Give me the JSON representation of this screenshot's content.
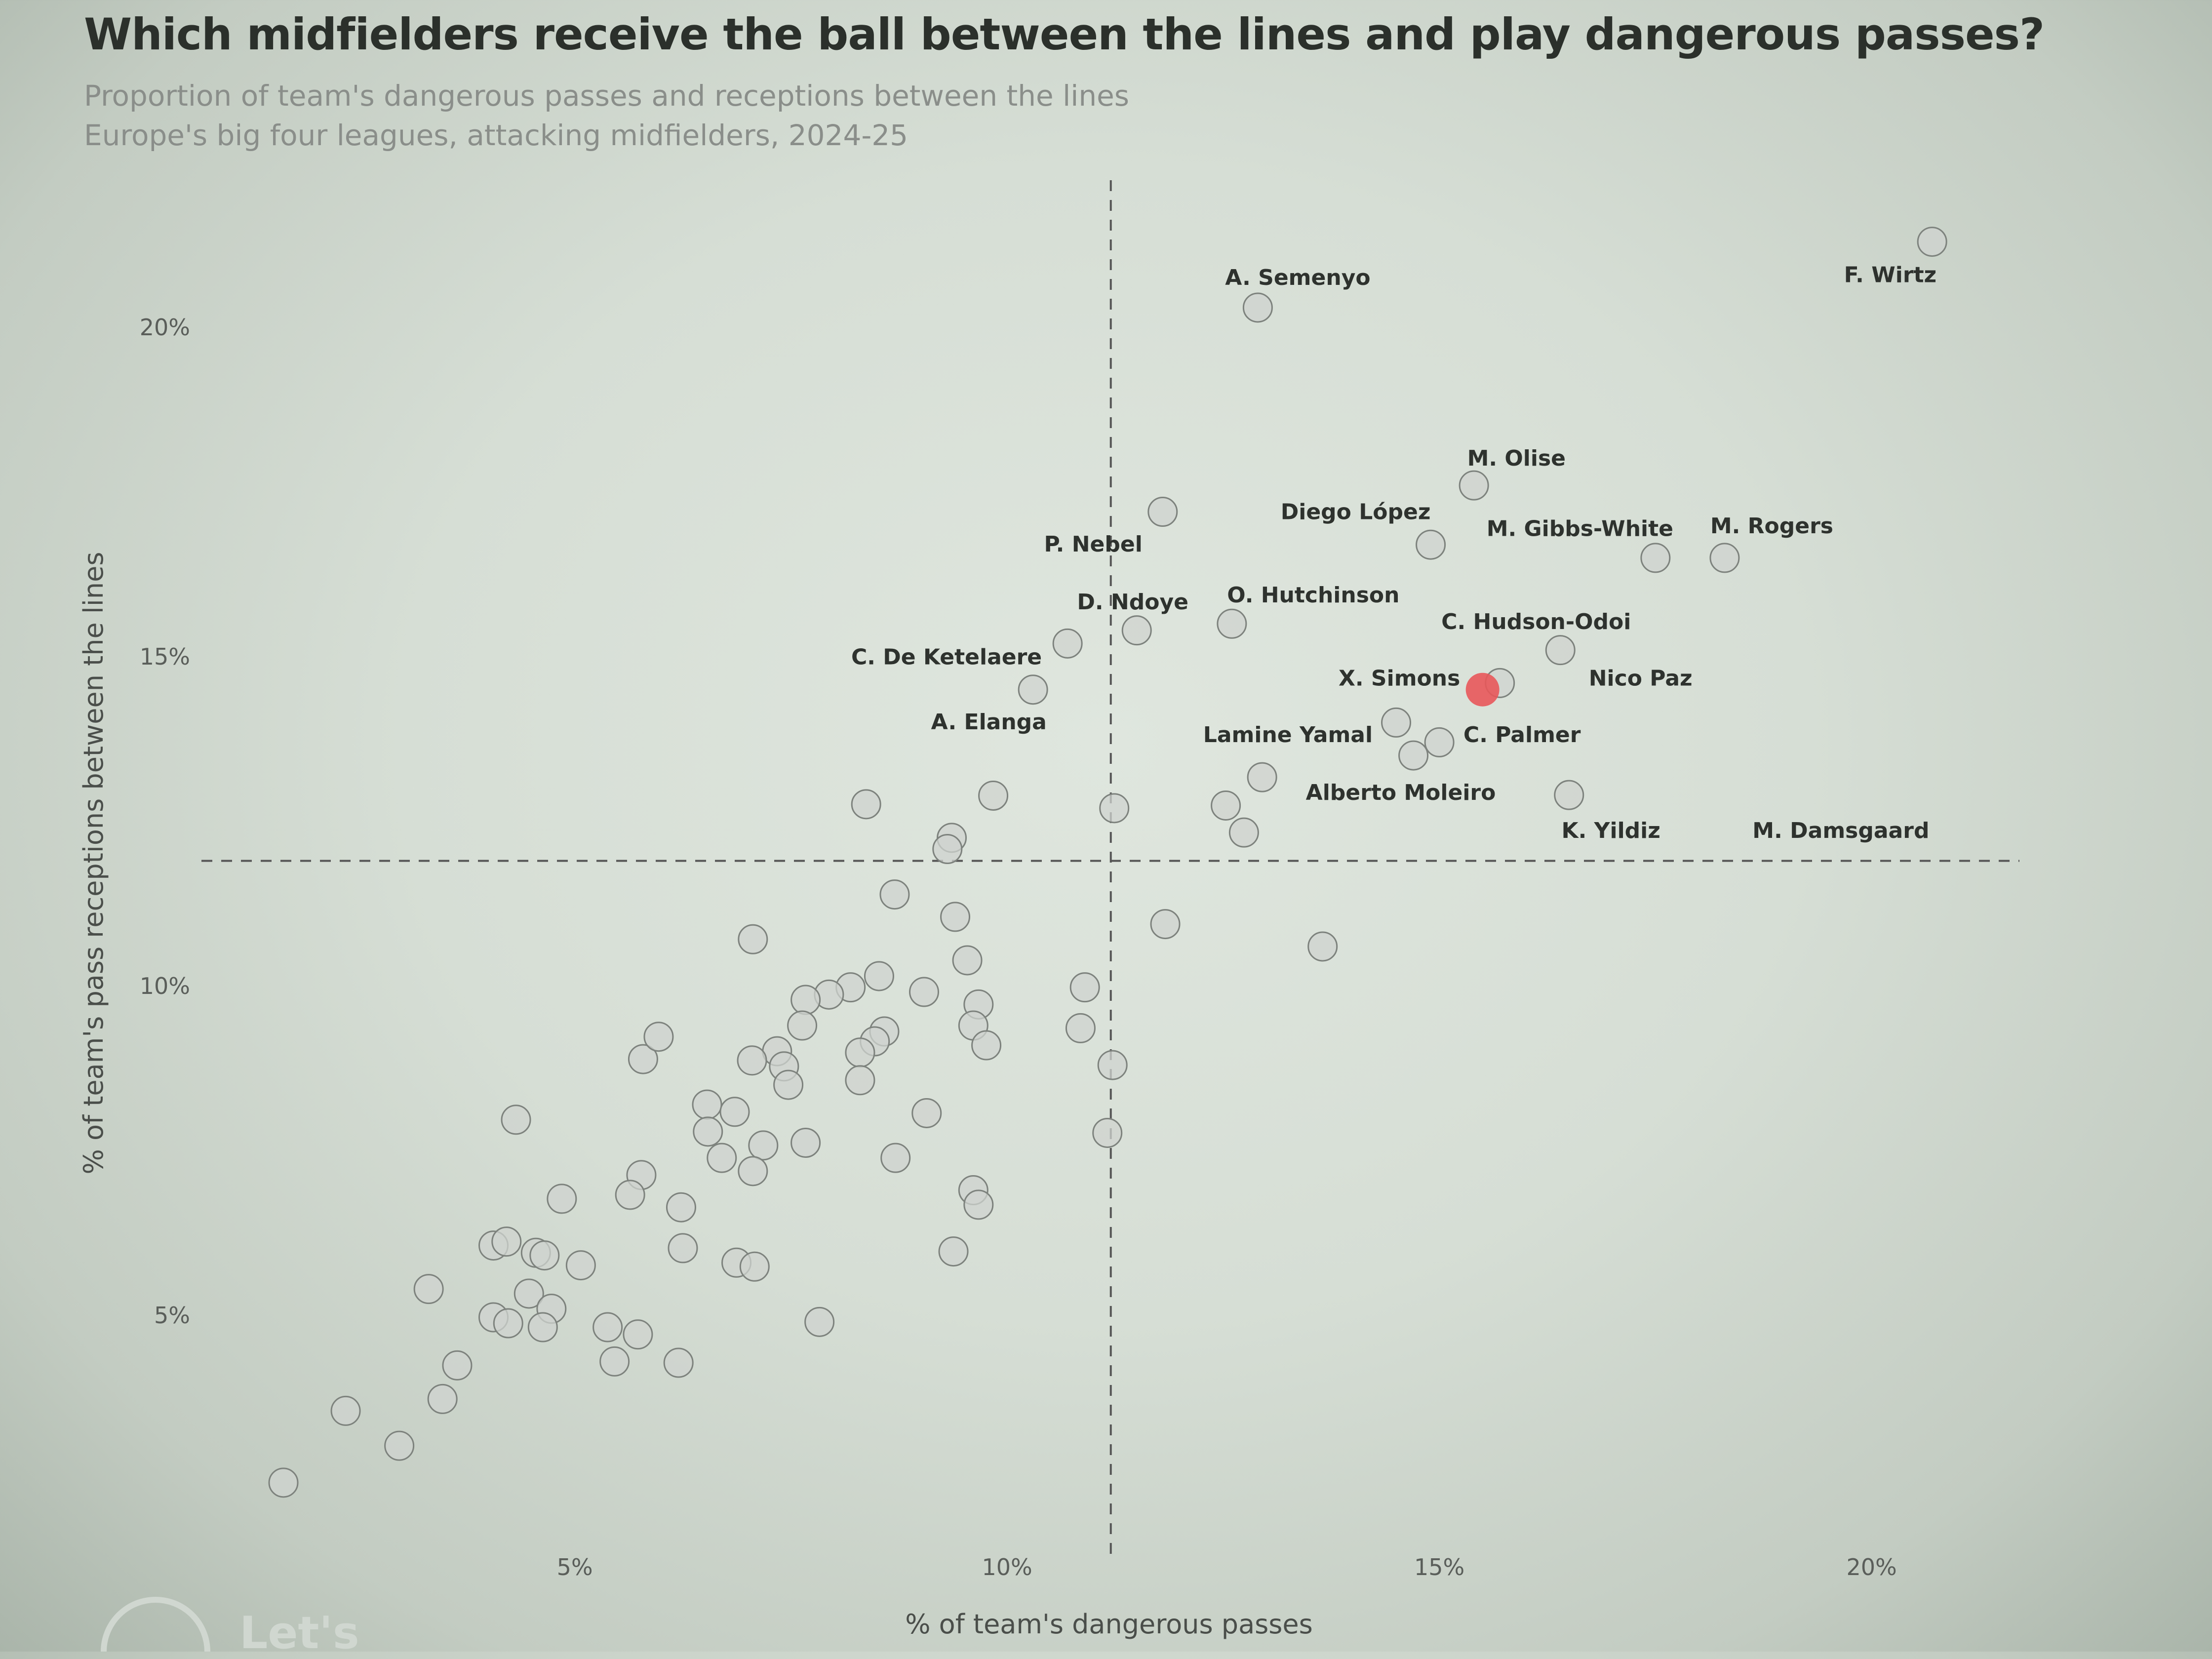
{
  "title": "Which midfielders receive the ball between the lines and play dangerous passes?",
  "subtitle_lines": [
    "Proportion of team's dangerous passes and receptions between the lines",
    "Europe's big four leagues, attacking midfielders, 2024-25"
  ],
  "logo": {
    "text": "Let's"
  },
  "colors": {
    "point_fill": "#cfd3cf",
    "point_stroke": "#7d827d",
    "highlight": "#e8585a",
    "background": "#d9e0d8",
    "reference_line": "#555555"
  },
  "chart_data": {
    "type": "scatter",
    "xlabel": "% of team's dangerous passes",
    "ylabel": "% of team's pass receptions between the lines",
    "xlim": [
      0,
      22.5
    ],
    "ylim": [
      0,
      22.5
    ],
    "x_ticks": [
      {
        "value": 5,
        "label": "5%"
      },
      {
        "value": 10,
        "label": "10%"
      },
      {
        "value": 15,
        "label": "15%"
      },
      {
        "value": 20,
        "label": "20%"
      }
    ],
    "y_ticks": [
      {
        "value": 5,
        "label": "5%"
      },
      {
        "value": 10,
        "label": "10%"
      },
      {
        "value": 15,
        "label": "15%"
      },
      {
        "value": 20,
        "label": "20%"
      }
    ],
    "grid": false,
    "reference_lines": {
      "x": 11.2,
      "y": 11.9,
      "style": "dashed"
    },
    "labeled_points": [
      {
        "name": "F. Wirtz",
        "x": 20.7,
        "y": 21.3
      },
      {
        "name": "A. Semenyo",
        "x": 12.9,
        "y": 20.3
      },
      {
        "name": "M. Olise",
        "x": 15.4,
        "y": 17.6
      },
      {
        "name": "Diego López",
        "x": 14.9,
        "y": 16.7
      },
      {
        "name": "M. Gibbs-White",
        "x": 17.5,
        "y": 16.5
      },
      {
        "name": "M. Rogers",
        "x": 18.3,
        "y": 16.5
      },
      {
        "name": "P. Nebel",
        "x": 11.8,
        "y": 17.2
      },
      {
        "name": "D. Ndoye",
        "x": 11.5,
        "y": 15.4
      },
      {
        "name": "O. Hutchinson",
        "x": 12.6,
        "y": 15.5
      },
      {
        "name": "C. De Ketelaere",
        "x": 10.7,
        "y": 15.2
      },
      {
        "name": "A. Elanga",
        "x": 10.3,
        "y": 14.5
      },
      {
        "name": "C. Hudson-Odoi",
        "x": 15.7,
        "y": 14.6
      },
      {
        "name": "Nico Paz",
        "x": 16.4,
        "y": 15.1
      },
      {
        "name": "X. Simons",
        "x": 15.5,
        "y": 14.5,
        "highlight": true
      },
      {
        "name": "Lamine Yamal",
        "x": 14.5,
        "y": 14.0
      },
      {
        "name": "C. Palmer",
        "x": 15.0,
        "y": 13.7
      },
      {
        "name": "Alberto Moleiro",
        "x": 14.7,
        "y": 13.5
      },
      {
        "name": "K. Yildiz",
        "x": 16.5,
        "y": 12.9
      },
      {
        "name": "M. Damsgaard"
      }
    ],
    "other_points": [
      [
        12.95,
        13.17
      ],
      [
        12.53,
        12.74
      ],
      [
        12.74,
        12.33
      ],
      [
        11.24,
        12.7
      ],
      [
        11.83,
        10.94
      ],
      [
        13.65,
        10.6
      ],
      [
        9.84,
        12.89
      ],
      [
        8.37,
        12.76
      ],
      [
        9.36,
        12.25
      ],
      [
        9.31,
        12.08
      ],
      [
        8.7,
        11.39
      ],
      [
        9.4,
        11.05
      ],
      [
        7.06,
        10.71
      ],
      [
        9.54,
        10.39
      ],
      [
        8.52,
        10.15
      ],
      [
        8.19,
        9.98
      ],
      [
        7.94,
        9.87
      ],
      [
        7.67,
        9.79
      ],
      [
        9.04,
        9.91
      ],
      [
        10.9,
        9.98
      ],
      [
        9.67,
        9.72
      ],
      [
        9.61,
        9.4
      ],
      [
        8.58,
        9.31
      ],
      [
        8.47,
        9.16
      ],
      [
        8.3,
        8.99
      ],
      [
        7.63,
        9.4
      ],
      [
        7.34,
        9.01
      ],
      [
        7.05,
        8.87
      ],
      [
        7.42,
        8.78
      ],
      [
        7.47,
        8.5
      ],
      [
        8.3,
        8.57
      ],
      [
        9.76,
        9.1
      ],
      [
        10.85,
        9.36
      ],
      [
        11.22,
        8.8
      ],
      [
        5.79,
        8.89
      ],
      [
        5.97,
        9.23
      ],
      [
        4.32,
        7.97
      ],
      [
        6.53,
        8.2
      ],
      [
        6.85,
        8.09
      ],
      [
        6.54,
        7.79
      ],
      [
        9.07,
        8.07
      ],
      [
        6.7,
        7.39
      ],
      [
        7.18,
        7.58
      ],
      [
        7.67,
        7.62
      ],
      [
        7.06,
        7.19
      ],
      [
        8.71,
        7.39
      ],
      [
        11.16,
        7.77
      ],
      [
        4.85,
        6.77
      ],
      [
        5.77,
        7.13
      ],
      [
        5.64,
        6.83
      ],
      [
        6.23,
        6.64
      ],
      [
        9.61,
        6.9
      ],
      [
        9.67,
        6.68
      ],
      [
        4.06,
        6.06
      ],
      [
        4.21,
        6.12
      ],
      [
        4.55,
        5.95
      ],
      [
        4.65,
        5.91
      ],
      [
        5.07,
        5.76
      ],
      [
        6.25,
        6.02
      ],
      [
        9.38,
        5.97
      ],
      [
        6.87,
        5.8
      ],
      [
        7.08,
        5.74
      ],
      [
        3.31,
        5.4
      ],
      [
        4.47,
        5.33
      ],
      [
        4.06,
        4.97
      ],
      [
        4.73,
        5.1
      ],
      [
        4.63,
        4.82
      ],
      [
        4.23,
        4.88
      ],
      [
        5.38,
        4.82
      ],
      [
        5.73,
        4.71
      ],
      [
        7.83,
        4.9
      ],
      [
        5.46,
        4.3
      ],
      [
        6.2,
        4.28
      ],
      [
        3.64,
        4.24
      ],
      [
        3.47,
        3.73
      ],
      [
        2.35,
        3.55
      ],
      [
        2.97,
        3.02
      ],
      [
        1.63,
        2.46
      ]
    ]
  }
}
